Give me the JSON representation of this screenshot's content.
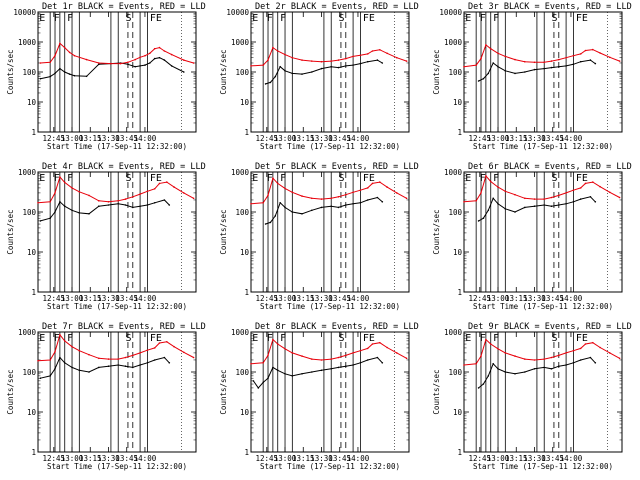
{
  "figure": {
    "subtitle_template": "Start Time (17-Sep-11 12:32:00)",
    "colors": {
      "events": "#000000",
      "lld": "#e8000b",
      "axis": "#000000",
      "background": "#ffffff"
    }
  },
  "chart_data": [
    {
      "type": "line",
      "title": "Det 1r BLACK = Events, RED = LLD",
      "xlabel": "Start Time (17-Sep-11 12:32:00)",
      "ylabel": "Counts/sec",
      "yscale": "log",
      "ylim": [
        1,
        10000
      ],
      "xlim_minutes": [
        0,
        130
      ],
      "xticks": [
        "12:45",
        "13:00",
        "13:15",
        "13:30",
        "13:45",
        "14:00"
      ],
      "yticks": [
        "1",
        "10",
        "100",
        "1000",
        "10000"
      ],
      "markers": [
        "E",
        "F",
        "F",
        "S",
        "FE"
      ],
      "series": [
        {
          "name": "Events",
          "color": "#000000",
          "x": [
            2,
            10,
            14,
            18,
            22,
            26,
            30,
            40,
            50,
            60,
            68,
            74,
            80,
            84,
            88,
            92,
            96,
            100,
            104,
            110,
            120
          ],
          "y": [
            60,
            70,
            90,
            130,
            100,
            85,
            75,
            72,
            180,
            190,
            200,
            180,
            150,
            160,
            170,
            200,
            280,
            300,
            250,
            160,
            100
          ]
        },
        {
          "name": "LLD",
          "color": "#e8000b",
          "x": [
            2,
            10,
            14,
            18,
            22,
            26,
            30,
            40,
            50,
            60,
            68,
            74,
            80,
            84,
            88,
            92,
            96,
            100,
            104,
            110,
            120,
            128
          ],
          "y": [
            200,
            210,
            350,
            900,
            650,
            450,
            350,
            260,
            200,
            190,
            190,
            210,
            260,
            310,
            350,
            420,
            600,
            650,
            500,
            380,
            250,
            200
          ]
        }
      ]
    },
    {
      "type": "line",
      "title": "Det 2r BLACK = Events, RED = LLD",
      "xlabel": "Start Time (17-Sep-11 12:32:00)",
      "ylabel": "Counts/sec",
      "yscale": "log",
      "ylim": [
        1,
        10000
      ],
      "xlim_minutes": [
        0,
        130
      ],
      "xticks": [
        "12:45",
        "13:00",
        "13:15",
        "13:30",
        "13:45",
        "14:00"
      ],
      "yticks": [
        "1",
        "10",
        "100",
        "1000",
        "10000"
      ],
      "markers": [
        "E",
        "F",
        "F",
        "S",
        "FE"
      ],
      "series": [
        {
          "name": "Events",
          "color": "#000000",
          "x": [
            12,
            16,
            20,
            24,
            28,
            34,
            42,
            50,
            58,
            66,
            72,
            78,
            84,
            90,
            96,
            104,
            108
          ],
          "y": [
            40,
            45,
            70,
            150,
            110,
            90,
            85,
            100,
            130,
            150,
            140,
            160,
            170,
            190,
            220,
            250,
            200
          ]
        },
        {
          "name": "LLD",
          "color": "#e8000b",
          "x": [
            0,
            10,
            14,
            18,
            22,
            28,
            34,
            42,
            50,
            58,
            66,
            72,
            78,
            84,
            90,
            96,
            100,
            106,
            112,
            120,
            128
          ],
          "y": [
            160,
            170,
            250,
            650,
            500,
            380,
            300,
            250,
            230,
            220,
            230,
            250,
            280,
            330,
            360,
            400,
            500,
            550,
            420,
            300,
            230
          ]
        }
      ]
    },
    {
      "type": "line",
      "title": "Det 3r BLACK = Events, RED = LLD",
      "xlabel": "Start Time (17-Sep-11 12:32:00)",
      "ylabel": "Counts/sec",
      "yscale": "log",
      "ylim": [
        1,
        10000
      ],
      "xlim_minutes": [
        0,
        130
      ],
      "xticks": [
        "12:45",
        "13:00",
        "13:15",
        "13:30",
        "13:45",
        "14:00"
      ],
      "yticks": [
        "1",
        "10",
        "100",
        "1000",
        "10000"
      ],
      "markers": [
        "E",
        "F",
        "F",
        "S",
        "FE"
      ],
      "series": [
        {
          "name": "Events",
          "color": "#000000",
          "x": [
            12,
            16,
            20,
            24,
            28,
            34,
            42,
            50,
            58,
            66,
            72,
            78,
            84,
            90,
            96,
            104,
            108
          ],
          "y": [
            50,
            60,
            90,
            200,
            150,
            110,
            90,
            100,
            120,
            130,
            140,
            150,
            160,
            180,
            220,
            250,
            190
          ]
        },
        {
          "name": "LLD",
          "color": "#e8000b",
          "x": [
            0,
            10,
            14,
            18,
            22,
            28,
            34,
            42,
            50,
            58,
            66,
            72,
            78,
            84,
            90,
            96,
            100,
            106,
            112,
            120,
            128
          ],
          "y": [
            150,
            170,
            280,
            800,
            600,
            420,
            330,
            260,
            220,
            210,
            210,
            230,
            260,
            300,
            350,
            400,
            520,
            560,
            430,
            310,
            230
          ]
        }
      ]
    },
    {
      "type": "line",
      "title": "Det 4r BLACK = Events, RED = LLD",
      "xlabel": "Start Time (17-Sep-11 12:32:00)",
      "ylabel": "Counts/sec",
      "yscale": "log",
      "ylim": [
        1,
        1000
      ],
      "xlim_minutes": [
        0,
        130
      ],
      "xticks": [
        "12:45",
        "13:00",
        "13:15",
        "13:30",
        "13:45",
        "14:00"
      ],
      "yticks": [
        "1",
        "10",
        "100",
        "1000"
      ],
      "markers": [
        "E",
        "F",
        "F",
        "S",
        "FE"
      ],
      "series": [
        {
          "name": "Events",
          "color": "#000000",
          "x": [
            2,
            10,
            14,
            18,
            22,
            28,
            34,
            42,
            50,
            58,
            66,
            72,
            78,
            84,
            90,
            96,
            104,
            108
          ],
          "y": [
            60,
            70,
            100,
            180,
            140,
            110,
            95,
            90,
            140,
            150,
            160,
            150,
            130,
            140,
            150,
            170,
            200,
            150
          ]
        },
        {
          "name": "LLD",
          "color": "#e8000b",
          "x": [
            0,
            10,
            14,
            18,
            22,
            28,
            34,
            42,
            50,
            58,
            66,
            72,
            78,
            84,
            90,
            96,
            100,
            106,
            112,
            120,
            128
          ],
          "y": [
            170,
            180,
            300,
            750,
            550,
            400,
            320,
            260,
            190,
            180,
            190,
            210,
            240,
            280,
            330,
            380,
            520,
            560,
            420,
            300,
            220
          ]
        }
      ]
    },
    {
      "type": "line",
      "title": "Det 5r BLACK = Events, RED = LLD",
      "xlabel": "Start Time (17-Sep-11 12:32:00)",
      "ylabel": "Counts/sec",
      "yscale": "log",
      "ylim": [
        1,
        1000
      ],
      "xlim_minutes": [
        0,
        130
      ],
      "xticks": [
        "12:45",
        "13:00",
        "13:15",
        "13:30",
        "13:45",
        "14:00"
      ],
      "yticks": [
        "1",
        "10",
        "100",
        "1000"
      ],
      "markers": [
        "E",
        "F",
        "F",
        "S",
        "FE"
      ],
      "series": [
        {
          "name": "Events",
          "color": "#000000",
          "x": [
            12,
            16,
            20,
            24,
            28,
            34,
            42,
            50,
            58,
            66,
            72,
            78,
            84,
            90,
            96,
            104,
            108
          ],
          "y": [
            50,
            55,
            80,
            170,
            130,
            100,
            90,
            110,
            130,
            140,
            130,
            150,
            160,
            170,
            200,
            230,
            180
          ]
        },
        {
          "name": "LLD",
          "color": "#e8000b",
          "x": [
            0,
            10,
            14,
            18,
            22,
            28,
            34,
            42,
            50,
            58,
            66,
            72,
            78,
            84,
            90,
            96,
            100,
            106,
            112,
            120,
            128
          ],
          "y": [
            160,
            170,
            260,
            700,
            520,
            390,
            310,
            250,
            220,
            210,
            220,
            240,
            270,
            310,
            350,
            400,
            520,
            560,
            420,
            300,
            220
          ]
        }
      ]
    },
    {
      "type": "line",
      "title": "Det 6r BLACK = Events, RED = LLD",
      "xlabel": "Start Time (17-Sep-11 12:32:00)",
      "ylabel": "Counts/sec",
      "yscale": "log",
      "ylim": [
        1,
        1000
      ],
      "xlim_minutes": [
        0,
        130
      ],
      "xticks": [
        "12:45",
        "13:00",
        "13:15",
        "13:30",
        "13:45",
        "14:00"
      ],
      "yticks": [
        "1",
        "10",
        "100",
        "1000"
      ],
      "markers": [
        "E",
        "F",
        "F",
        "S",
        "FE"
      ],
      "series": [
        {
          "name": "Events",
          "color": "#000000",
          "x": [
            12,
            16,
            20,
            24,
            28,
            34,
            42,
            50,
            58,
            66,
            72,
            78,
            84,
            90,
            96,
            104,
            108
          ],
          "y": [
            60,
            70,
            110,
            220,
            160,
            120,
            100,
            130,
            140,
            150,
            140,
            150,
            160,
            180,
            210,
            240,
            180
          ]
        },
        {
          "name": "LLD",
          "color": "#e8000b",
          "x": [
            0,
            10,
            14,
            18,
            22,
            28,
            34,
            42,
            50,
            58,
            66,
            72,
            78,
            84,
            90,
            96,
            100,
            106,
            112,
            120,
            128
          ],
          "y": [
            180,
            190,
            300,
            800,
            580,
            420,
            330,
            270,
            220,
            210,
            210,
            230,
            260,
            300,
            350,
            400,
            520,
            560,
            430,
            310,
            230
          ]
        }
      ]
    },
    {
      "type": "line",
      "title": "Det 7r BLACK = Events, RED = LLD",
      "xlabel": "Start Time (17-Sep-11 12:32:00)",
      "ylabel": "Counts/sec",
      "yscale": "log",
      "ylim": [
        1,
        1000
      ],
      "xlim_minutes": [
        0,
        130
      ],
      "xticks": [
        "12:45",
        "13:00",
        "13:15",
        "13:30",
        "13:45",
        "14:00"
      ],
      "yticks": [
        "1",
        "10",
        "100",
        "1000"
      ],
      "markers": [
        "E",
        "F",
        "F",
        "S",
        "FE"
      ],
      "series": [
        {
          "name": "Events",
          "color": "#000000",
          "x": [
            2,
            10,
            14,
            18,
            22,
            28,
            34,
            42,
            50,
            58,
            66,
            72,
            78,
            84,
            90,
            96,
            104,
            108
          ],
          "y": [
            70,
            80,
            120,
            230,
            170,
            130,
            110,
            100,
            130,
            140,
            150,
            140,
            130,
            150,
            170,
            200,
            230,
            170
          ]
        },
        {
          "name": "LLD",
          "color": "#e8000b",
          "x": [
            0,
            10,
            14,
            18,
            22,
            28,
            34,
            42,
            50,
            58,
            66,
            72,
            78,
            84,
            90,
            96,
            100,
            106,
            112,
            120,
            128
          ],
          "y": [
            190,
            200,
            320,
            850,
            600,
            430,
            340,
            270,
            220,
            210,
            210,
            230,
            260,
            300,
            350,
            400,
            530,
            570,
            430,
            310,
            230
          ]
        }
      ]
    },
    {
      "type": "line",
      "title": "Det 8r BLACK = Events, RED = LLD",
      "xlabel": "Start Time (17-Sep-11 12:32:00)",
      "ylabel": "Counts/sec",
      "yscale": "log",
      "ylim": [
        1,
        1000
      ],
      "xlim_minutes": [
        0,
        130
      ],
      "xticks": [
        "12:45",
        "13:00",
        "13:15",
        "13:30",
        "13:45",
        "14:00"
      ],
      "yticks": [
        "1",
        "10",
        "100",
        "1000"
      ],
      "markers": [
        "E",
        "F",
        "F",
        "S",
        "FE"
      ],
      "series": [
        {
          "name": "Events",
          "color": "#000000",
          "x": [
            2,
            6,
            10,
            14,
            18,
            22,
            28,
            34,
            42,
            50,
            58,
            66,
            72,
            78,
            84,
            90,
            96,
            104,
            108
          ],
          "y": [
            60,
            40,
            55,
            70,
            130,
            110,
            90,
            80,
            90,
            100,
            110,
            120,
            130,
            140,
            150,
            170,
            200,
            230,
            170
          ]
        },
        {
          "name": "LLD",
          "color": "#e8000b",
          "x": [
            0,
            10,
            14,
            18,
            22,
            28,
            34,
            42,
            50,
            58,
            66,
            72,
            78,
            84,
            90,
            96,
            100,
            106,
            112,
            120,
            128
          ],
          "y": [
            160,
            170,
            260,
            650,
            500,
            380,
            300,
            250,
            210,
            200,
            210,
            230,
            260,
            300,
            340,
            390,
            500,
            540,
            410,
            300,
            220
          ]
        }
      ]
    },
    {
      "type": "line",
      "title": "Det 9r BLACK = Events, RED = LLD",
      "xlabel": "Start Time (17-Sep-11 12:32:00)",
      "ylabel": "Counts/sec",
      "yscale": "log",
      "ylim": [
        1,
        1000
      ],
      "xlim_minutes": [
        0,
        130
      ],
      "xticks": [
        "12:45",
        "13:00",
        "13:15",
        "13:30",
        "13:45",
        "14:00"
      ],
      "yticks": [
        "1",
        "10",
        "100",
        "1000"
      ],
      "markers": [
        "E",
        "F",
        "F",
        "S",
        "FE"
      ],
      "series": [
        {
          "name": "Events",
          "color": "#000000",
          "x": [
            12,
            16,
            20,
            24,
            28,
            34,
            42,
            50,
            58,
            66,
            72,
            78,
            84,
            90,
            96,
            104,
            108
          ],
          "y": [
            40,
            50,
            80,
            160,
            120,
            100,
            90,
            100,
            120,
            130,
            120,
            140,
            150,
            170,
            200,
            230,
            170
          ]
        },
        {
          "name": "LLD",
          "color": "#e8000b",
          "x": [
            0,
            10,
            14,
            18,
            22,
            28,
            34,
            42,
            50,
            58,
            66,
            72,
            78,
            84,
            90,
            96,
            100,
            106,
            112,
            120,
            128
          ],
          "y": [
            150,
            160,
            250,
            650,
            500,
            380,
            300,
            250,
            210,
            200,
            210,
            230,
            260,
            300,
            340,
            390,
            500,
            540,
            410,
            300,
            220
          ]
        }
      ]
    }
  ]
}
